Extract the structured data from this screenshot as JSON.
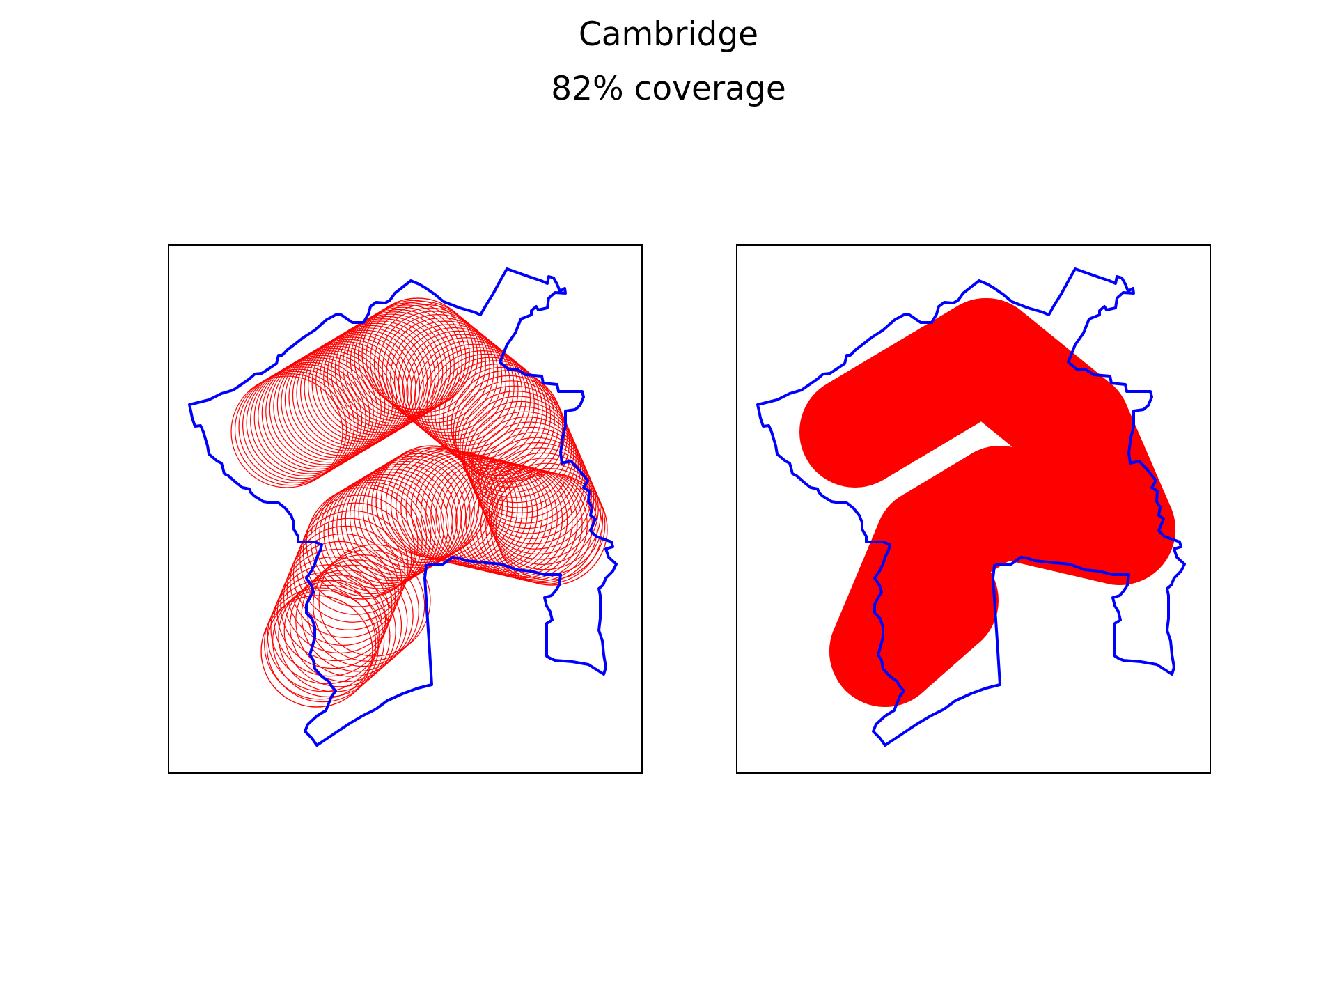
{
  "chart_data": {
    "type": "map",
    "title": "Cambridge",
    "subtitle": "82% coverage",
    "panels": [
      {
        "name": "circle-outlines",
        "style": "outline"
      },
      {
        "name": "circle-fill",
        "style": "filled"
      }
    ],
    "boundary_color": "#0000ff",
    "coverage_color": "#ff0000",
    "frame_color": "#000000",
    "coverage_percent": 82
  }
}
